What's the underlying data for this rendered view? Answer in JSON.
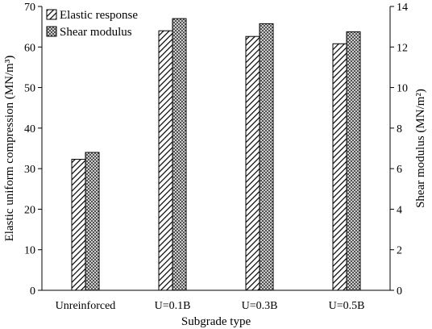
{
  "chart_data": {
    "type": "bar",
    "xlabel": "Subgrade type",
    "ylabel": "Elastic uniform compression (MN/m³)",
    "y2label": "Shear modulus (MN/m²)",
    "categories": [
      "Unreinforced",
      "U=0.1B",
      "U=0.3B",
      "U=0.5B"
    ],
    "ylim": [
      0,
      70
    ],
    "y2lim": [
      0,
      14
    ],
    "yticks": [
      0,
      10,
      20,
      30,
      40,
      50,
      60,
      70
    ],
    "y2ticks": [
      0,
      2,
      4,
      6,
      8,
      10,
      12,
      14
    ],
    "grid": false,
    "legend_position": "top-left",
    "series": [
      {
        "name": "Elastic response",
        "axis": "left",
        "pattern": "diagonal-hatch",
        "values": [
          32.3,
          64.0,
          62.6,
          60.8
        ]
      },
      {
        "name": "Shear modulus",
        "axis": "right",
        "pattern": "crosshatch",
        "values": [
          6.8,
          13.4,
          13.15,
          12.75
        ]
      }
    ]
  }
}
